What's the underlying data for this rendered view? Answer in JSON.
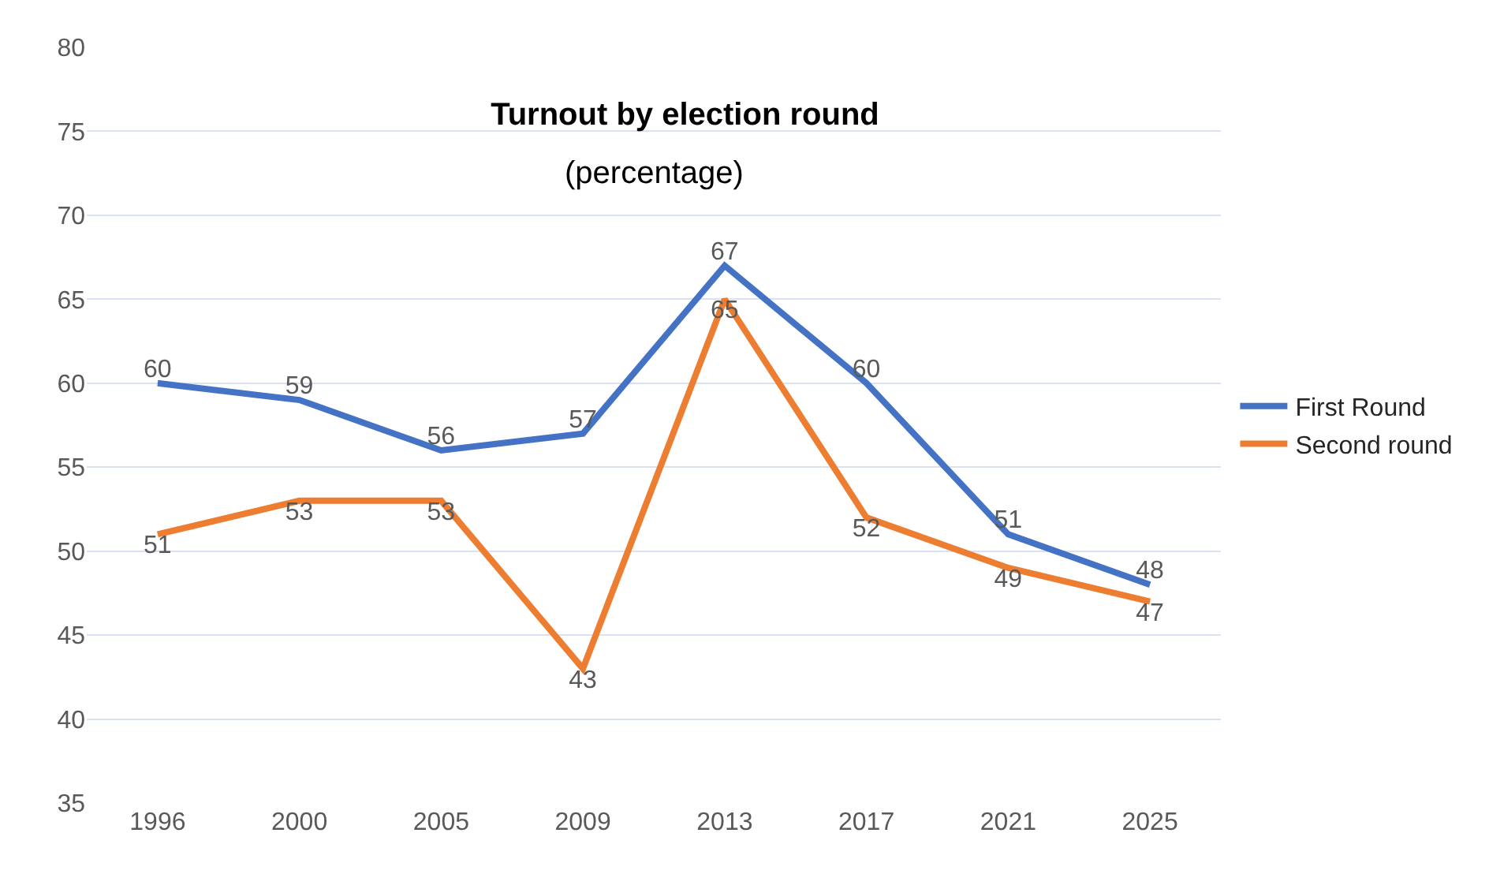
{
  "chart_data": {
    "type": "line",
    "title": "Turnout by election round",
    "subtitle": "(percentage)",
    "categories": [
      "1996",
      "2000",
      "2005",
      "2009",
      "2013",
      "2017",
      "2021",
      "2025"
    ],
    "series": [
      {
        "name": "First Round",
        "color": "#4472c4",
        "values": [
          60,
          59,
          56,
          57,
          67,
          60,
          51,
          48
        ]
      },
      {
        "name": "Second round",
        "color": "#ed7d31",
        "values": [
          51,
          53,
          53,
          43,
          65,
          52,
          49,
          47
        ]
      }
    ],
    "ylim": [
      35,
      80
    ],
    "yticks": [
      35,
      40,
      45,
      50,
      55,
      60,
      65,
      70,
      75,
      80
    ],
    "grid": "y",
    "legend": "right",
    "data_labels": true,
    "marker": "none",
    "line_style": "solid"
  }
}
